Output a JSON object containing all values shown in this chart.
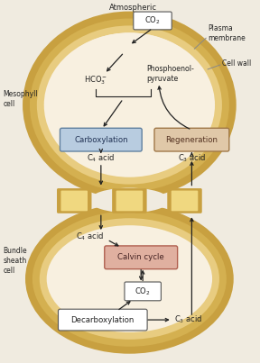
{
  "bg_color": "#f0ebe0",
  "outer_wall_color": "#c8a040",
  "inner_wall_color": "#dfc070",
  "plasma_color": "#e8d090",
  "cyto_color": "#f5ecd8",
  "carbox_fill": "#b8cce0",
  "carbox_edge": "#6080a0",
  "regen_fill": "#e0c8a8",
  "regen_edge": "#a07848",
  "calvin_fill": "#e0b0a0",
  "calvin_edge": "#b06050",
  "white_fill": "#ffffff",
  "white_edge": "#555555",
  "arrow_color": "#222222",
  "text_color": "#222222",
  "gray_line": "#888888",
  "meso_label": "Mesophyll\ncell",
  "bs_label": "Bundle\nsheath\ncell",
  "pm_label": "Plasma\nmembrane",
  "cw_label": "Cell wall",
  "atm_label": "Atmospheric",
  "co2_label": "CO₂",
  "hco3_label": "HCO₃⁻",
  "pep_label": "Phosphoenol-\npyruvate",
  "carbox_label": "Carboxylation",
  "regen_label": "Regeneration",
  "calvin_label": "Calvin cycle",
  "co2_small_label": "CO₂",
  "decarbox_label": "Decarboxylation",
  "c4_label": "C₄ acid",
  "c3_label": "C₃ acid"
}
